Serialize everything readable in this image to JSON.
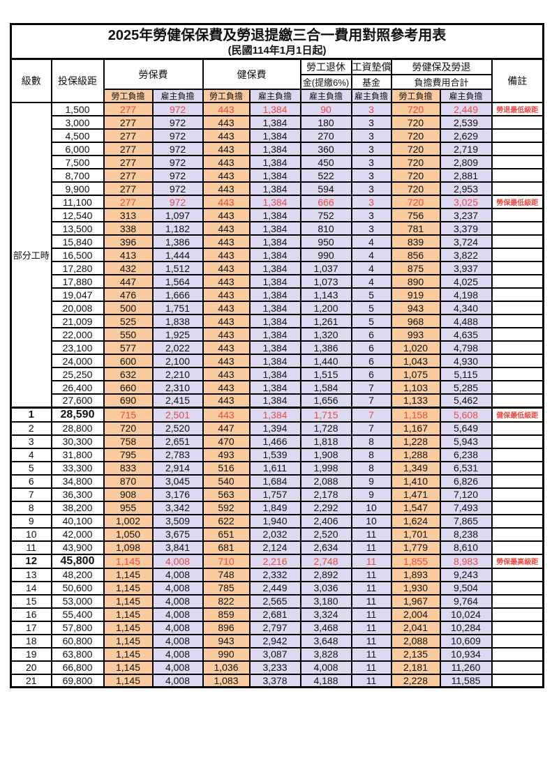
{
  "title": {
    "main": "2025年勞健保保費及勞退提繳三合一費用對照參考用表",
    "sub": "(民國114年1月1日起)"
  },
  "header": {
    "level": "級數",
    "bracket": "投保級距",
    "labor_ins": "勞保費",
    "health_ins": "健保費",
    "pension_line1": "勞工退休",
    "pension_line2": "金(提繳6%)",
    "wage_fund_line1": "工資墊償",
    "wage_fund_line2": "基金",
    "total_line1": "勞健保及勞退",
    "total_line2": "負擔費用合計",
    "remark": "備註",
    "employee": "勞工負擔",
    "employer": "雇主負擔"
  },
  "part_time_label": "部分工時",
  "part_time_span": 23,
  "colors": {
    "employee_bg": "#f9cb9e",
    "employer_bg": "#dcd9f0",
    "highlight_text": "#ee4b40",
    "border": "#000000"
  },
  "rows": [
    {
      "level": "",
      "bracket": "1,500",
      "v": [
        "277",
        "972",
        "443",
        "1,384",
        "90",
        "3",
        "720",
        "2,449"
      ],
      "remark": "勞退最低級距",
      "red": true
    },
    {
      "level": "",
      "bracket": "3,000",
      "v": [
        "277",
        "972",
        "443",
        "1,384",
        "180",
        "3",
        "720",
        "2,539"
      ],
      "remark": ""
    },
    {
      "level": "",
      "bracket": "4,500",
      "v": [
        "277",
        "972",
        "443",
        "1,384",
        "270",
        "3",
        "720",
        "2,629"
      ],
      "remark": ""
    },
    {
      "level": "",
      "bracket": "6,000",
      "v": [
        "277",
        "972",
        "443",
        "1,384",
        "360",
        "3",
        "720",
        "2,719"
      ],
      "remark": ""
    },
    {
      "level": "",
      "bracket": "7,500",
      "v": [
        "277",
        "972",
        "443",
        "1,384",
        "450",
        "3",
        "720",
        "2,809"
      ],
      "remark": ""
    },
    {
      "level": "",
      "bracket": "8,700",
      "v": [
        "277",
        "972",
        "443",
        "1,384",
        "522",
        "3",
        "720",
        "2,881"
      ],
      "remark": ""
    },
    {
      "level": "",
      "bracket": "9,900",
      "v": [
        "277",
        "972",
        "443",
        "1,384",
        "594",
        "3",
        "720",
        "2,953"
      ],
      "remark": ""
    },
    {
      "level": "",
      "bracket": "11,100",
      "v": [
        "277",
        "972",
        "443",
        "1,384",
        "666",
        "3",
        "720",
        "3,025"
      ],
      "remark": "勞保最低級距",
      "red": true
    },
    {
      "level": "",
      "bracket": "12,540",
      "v": [
        "313",
        "1,097",
        "443",
        "1,384",
        "752",
        "3",
        "756",
        "3,237"
      ],
      "remark": ""
    },
    {
      "level": "",
      "bracket": "13,500",
      "v": [
        "338",
        "1,182",
        "443",
        "1,384",
        "810",
        "3",
        "781",
        "3,379"
      ],
      "remark": ""
    },
    {
      "level": "",
      "bracket": "15,840",
      "v": [
        "396",
        "1,386",
        "443",
        "1,384",
        "950",
        "4",
        "839",
        "3,724"
      ],
      "remark": ""
    },
    {
      "level": "",
      "bracket": "16,500",
      "v": [
        "413",
        "1,444",
        "443",
        "1,384",
        "990",
        "4",
        "856",
        "3,822"
      ],
      "remark": ""
    },
    {
      "level": "",
      "bracket": "17,280",
      "v": [
        "432",
        "1,512",
        "443",
        "1,384",
        "1,037",
        "4",
        "875",
        "3,937"
      ],
      "remark": ""
    },
    {
      "level": "",
      "bracket": "17,880",
      "v": [
        "447",
        "1,564",
        "443",
        "1,384",
        "1,073",
        "4",
        "890",
        "4,025"
      ],
      "remark": ""
    },
    {
      "level": "",
      "bracket": "19,047",
      "v": [
        "476",
        "1,666",
        "443",
        "1,384",
        "1,143",
        "5",
        "919",
        "4,198"
      ],
      "remark": ""
    },
    {
      "level": "",
      "bracket": "20,008",
      "v": [
        "500",
        "1,751",
        "443",
        "1,384",
        "1,200",
        "5",
        "943",
        "4,340"
      ],
      "remark": ""
    },
    {
      "level": "",
      "bracket": "21,009",
      "v": [
        "525",
        "1,838",
        "443",
        "1,384",
        "1,261",
        "5",
        "968",
        "4,488"
      ],
      "remark": ""
    },
    {
      "level": "",
      "bracket": "22,000",
      "v": [
        "550",
        "1,925",
        "443",
        "1,384",
        "1,320",
        "6",
        "993",
        "4,635"
      ],
      "remark": ""
    },
    {
      "level": "",
      "bracket": "23,100",
      "v": [
        "577",
        "2,022",
        "443",
        "1,384",
        "1,386",
        "6",
        "1,020",
        "4,798"
      ],
      "remark": ""
    },
    {
      "level": "",
      "bracket": "24,000",
      "v": [
        "600",
        "2,100",
        "443",
        "1,384",
        "1,440",
        "6",
        "1,043",
        "4,930"
      ],
      "remark": ""
    },
    {
      "level": "",
      "bracket": "25,250",
      "v": [
        "632",
        "2,210",
        "443",
        "1,384",
        "1,515",
        "6",
        "1,075",
        "5,115"
      ],
      "remark": ""
    },
    {
      "level": "",
      "bracket": "26,400",
      "v": [
        "660",
        "2,310",
        "443",
        "1,384",
        "1,584",
        "7",
        "1,103",
        "5,285"
      ],
      "remark": ""
    },
    {
      "level": "",
      "bracket": "27,600",
      "v": [
        "690",
        "2,415",
        "443",
        "1,384",
        "1,656",
        "7",
        "1,133",
        "5,462"
      ],
      "remark": ""
    },
    {
      "level": "1",
      "bracket": "28,590",
      "v": [
        "715",
        "2,501",
        "443",
        "1,384",
        "1,715",
        "7",
        "1,158",
        "5,608"
      ],
      "remark": "健保最低級距",
      "red": true,
      "emph": true,
      "thick": true
    },
    {
      "level": "2",
      "bracket": "28,800",
      "v": [
        "720",
        "2,520",
        "447",
        "1,394",
        "1,728",
        "7",
        "1,167",
        "5,649"
      ],
      "remark": ""
    },
    {
      "level": "3",
      "bracket": "30,300",
      "v": [
        "758",
        "2,651",
        "470",
        "1,466",
        "1,818",
        "8",
        "1,228",
        "5,943"
      ],
      "remark": ""
    },
    {
      "level": "4",
      "bracket": "31,800",
      "v": [
        "795",
        "2,783",
        "493",
        "1,539",
        "1,908",
        "8",
        "1,288",
        "6,238"
      ],
      "remark": ""
    },
    {
      "level": "5",
      "bracket": "33,300",
      "v": [
        "833",
        "2,914",
        "516",
        "1,611",
        "1,998",
        "8",
        "1,349",
        "6,531"
      ],
      "remark": ""
    },
    {
      "level": "6",
      "bracket": "34,800",
      "v": [
        "870",
        "3,045",
        "540",
        "1,684",
        "2,088",
        "9",
        "1,410",
        "6,826"
      ],
      "remark": ""
    },
    {
      "level": "7",
      "bracket": "36,300",
      "v": [
        "908",
        "3,176",
        "563",
        "1,757",
        "2,178",
        "9",
        "1,471",
        "7,120"
      ],
      "remark": ""
    },
    {
      "level": "8",
      "bracket": "38,200",
      "v": [
        "955",
        "3,342",
        "592",
        "1,849",
        "2,292",
        "10",
        "1,547",
        "7,493"
      ],
      "remark": ""
    },
    {
      "level": "9",
      "bracket": "40,100",
      "v": [
        "1,002",
        "3,509",
        "622",
        "1,940",
        "2,406",
        "10",
        "1,624",
        "7,865"
      ],
      "remark": ""
    },
    {
      "level": "10",
      "bracket": "42,000",
      "v": [
        "1,050",
        "3,675",
        "651",
        "2,032",
        "2,520",
        "11",
        "1,701",
        "8,238"
      ],
      "remark": ""
    },
    {
      "level": "11",
      "bracket": "43,900",
      "v": [
        "1,098",
        "3,841",
        "681",
        "2,124",
        "2,634",
        "11",
        "1,779",
        "8,610"
      ],
      "remark": ""
    },
    {
      "level": "12",
      "bracket": "45,800",
      "v": [
        "1,145",
        "4,008",
        "710",
        "2,216",
        "2,748",
        "11",
        "1,855",
        "8,983"
      ],
      "remark": "勞保最高級距",
      "red": true,
      "emph": true
    },
    {
      "level": "13",
      "bracket": "48,200",
      "v": [
        "1,145",
        "4,008",
        "748",
        "2,332",
        "2,892",
        "11",
        "1,893",
        "9,243"
      ],
      "remark": ""
    },
    {
      "level": "14",
      "bracket": "50,600",
      "v": [
        "1,145",
        "4,008",
        "785",
        "2,449",
        "3,036",
        "11",
        "1,930",
        "9,504"
      ],
      "remark": ""
    },
    {
      "level": "15",
      "bracket": "53,000",
      "v": [
        "1,145",
        "4,008",
        "822",
        "2,565",
        "3,180",
        "11",
        "1,967",
        "9,764"
      ],
      "remark": ""
    },
    {
      "level": "16",
      "bracket": "55,400",
      "v": [
        "1,145",
        "4,008",
        "859",
        "2,681",
        "3,324",
        "11",
        "2,004",
        "10,024"
      ],
      "remark": ""
    },
    {
      "level": "17",
      "bracket": "57,800",
      "v": [
        "1,145",
        "4,008",
        "896",
        "2,797",
        "3,468",
        "11",
        "2,041",
        "10,284"
      ],
      "remark": ""
    },
    {
      "level": "18",
      "bracket": "60,800",
      "v": [
        "1,145",
        "4,008",
        "943",
        "2,942",
        "3,648",
        "11",
        "2,088",
        "10,609"
      ],
      "remark": ""
    },
    {
      "level": "19",
      "bracket": "63,800",
      "v": [
        "1,145",
        "4,008",
        "990",
        "3,087",
        "3,828",
        "11",
        "2,135",
        "10,934"
      ],
      "remark": ""
    },
    {
      "level": "20",
      "bracket": "66,800",
      "v": [
        "1,145",
        "4,008",
        "1,036",
        "3,233",
        "4,008",
        "11",
        "2,181",
        "11,260"
      ],
      "remark": ""
    },
    {
      "level": "21",
      "bracket": "69,800",
      "v": [
        "1,145",
        "4,008",
        "1,083",
        "3,378",
        "4,188",
        "11",
        "2,228",
        "11,585"
      ],
      "remark": ""
    }
  ]
}
